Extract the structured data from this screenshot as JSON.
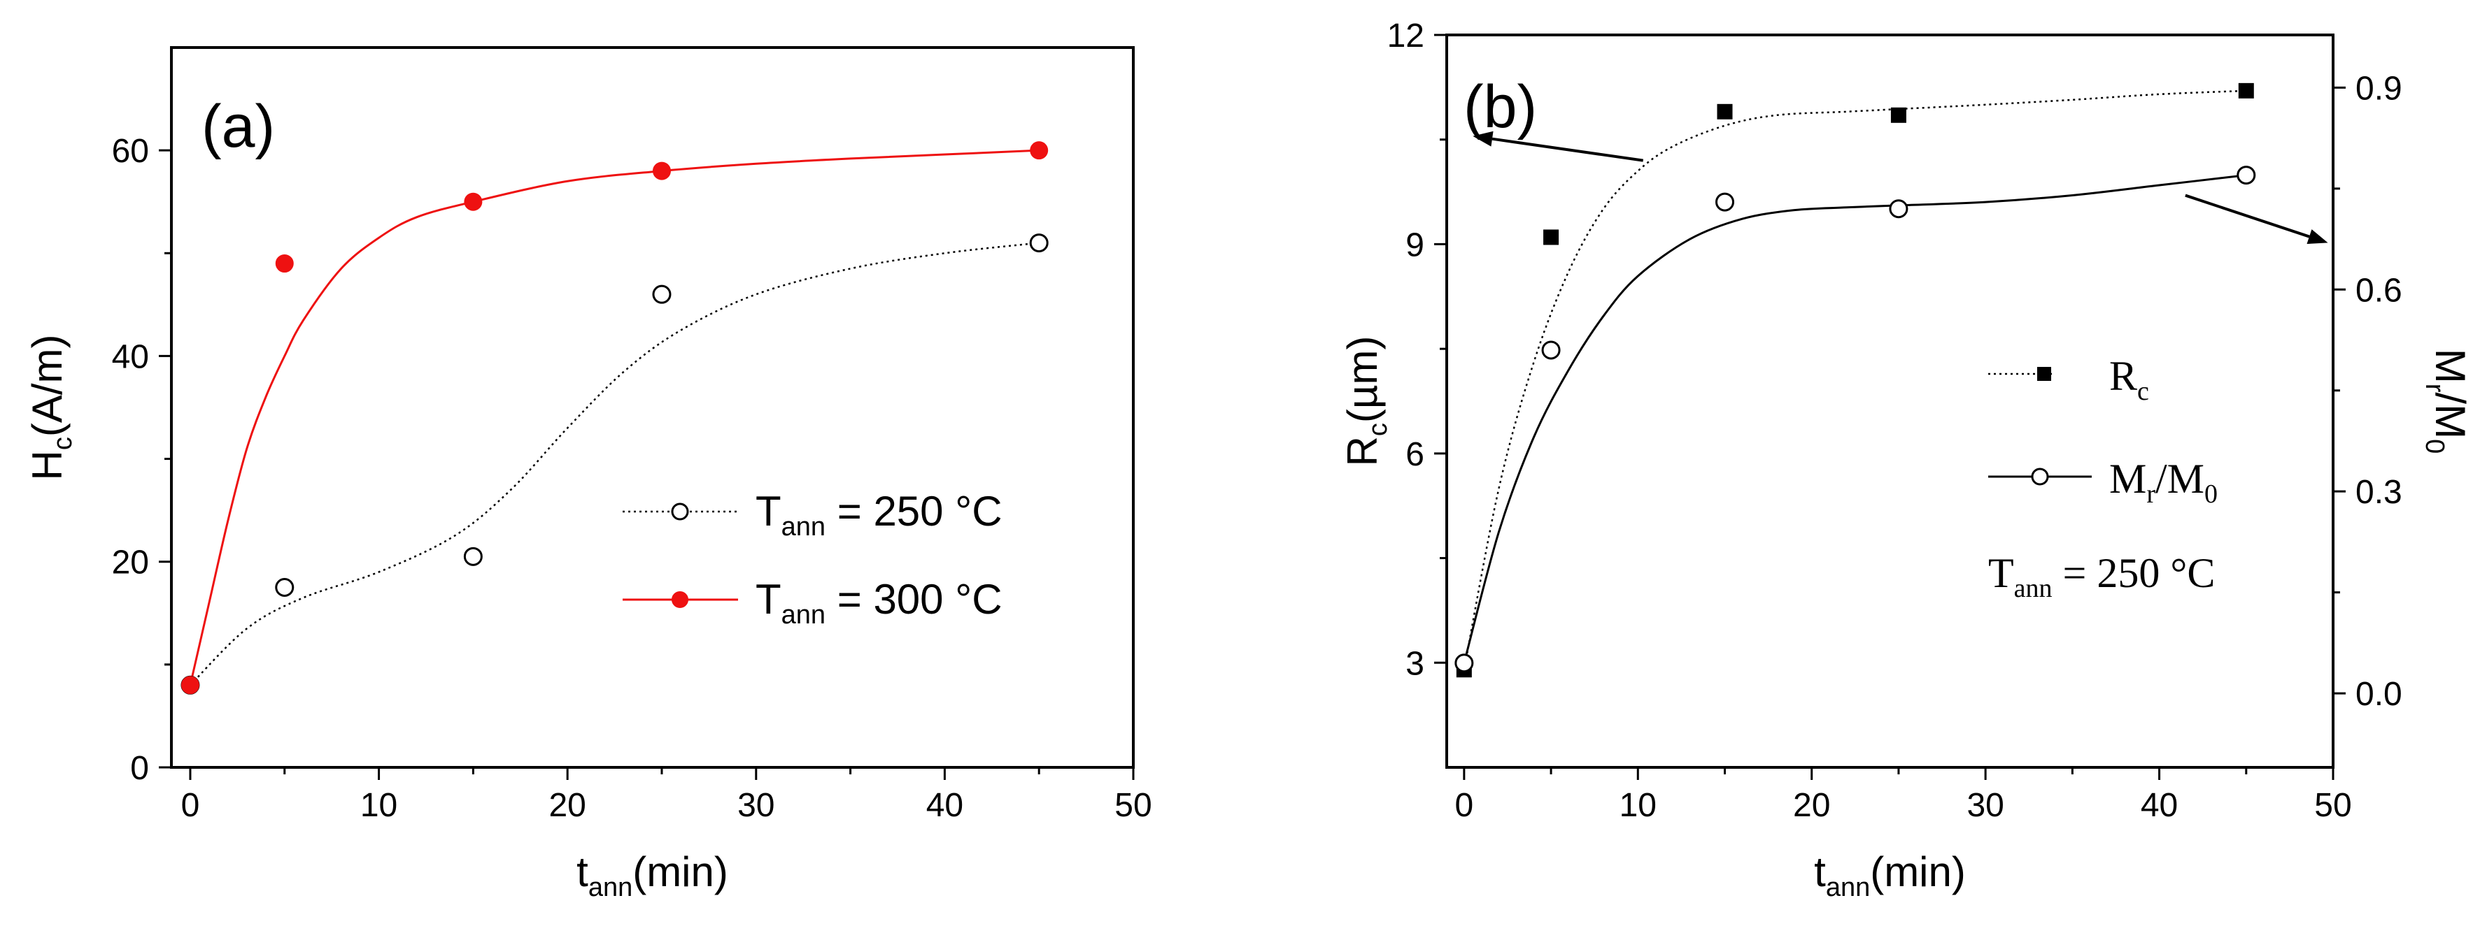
{
  "charts": [
    {
      "id": "a",
      "type": "scatter",
      "panel_label": "(a)",
      "xlabel": {
        "main": "t",
        "sub": "ann",
        "suffix": "(min)"
      },
      "ylabel": {
        "main": "H",
        "sub": "c",
        "suffix": "(A/m)"
      },
      "xlim": [
        -1,
        50
      ],
      "ylim": [
        0,
        70
      ],
      "xticks": [
        0,
        10,
        20,
        30,
        40,
        50
      ],
      "yticks": [
        0,
        20,
        40,
        60
      ],
      "legend": {
        "position": "middle-right"
      },
      "series": [
        {
          "name": "T_ann = 250 °C",
          "label_main": "T",
          "label_sub": "ann",
          "label_rest": " = 250 °C",
          "marker": "open-circle",
          "line": "dotted",
          "color": "#000000",
          "x": [
            0,
            5,
            15,
            25,
            45
          ],
          "y": [
            8,
            17.5,
            20.5,
            46,
            51
          ],
          "fit_x": [
            0,
            3,
            6,
            10,
            14,
            17,
            20,
            23,
            26,
            30,
            35,
            40,
            45
          ],
          "fit_y": [
            8,
            13.5,
            16.5,
            19,
            22.5,
            27,
            33,
            38.5,
            42.5,
            46,
            48.5,
            50,
            51
          ]
        },
        {
          "name": "T_ann = 300 °C",
          "label_main": "T",
          "label_sub": "ann",
          "label_rest": " = 300 °C",
          "marker": "filled-circle",
          "line": "solid",
          "color": "#ee1111",
          "x": [
            0,
            5,
            15,
            25,
            45
          ],
          "y": [
            8,
            49,
            55,
            58,
            60
          ],
          "fit_x": [
            0,
            1,
            2,
            3,
            4,
            5,
            6,
            8,
            10,
            12,
            15,
            20,
            25,
            30,
            35,
            40,
            45
          ],
          "fit_y": [
            8,
            16,
            24,
            31,
            36,
            40,
            43.5,
            48.5,
            51.5,
            53.5,
            55,
            57,
            58,
            58.7,
            59.2,
            59.6,
            60
          ]
        }
      ]
    },
    {
      "id": "b",
      "type": "scatter",
      "panel_label": "(b)",
      "xlabel": {
        "main": "t",
        "sub": "ann",
        "suffix": "(min)"
      },
      "ylabel": {
        "main": "R",
        "sub": "c",
        "suffix": "(µm)"
      },
      "ylabel_right": {
        "main": "M",
        "sub1": "r",
        "mid": "/M",
        "sub2": "0"
      },
      "xlim": [
        -1,
        50
      ],
      "ylim": [
        1.5,
        12
      ],
      "ylim_right": [
        -0.11,
        0.9783
      ],
      "xticks": [
        0,
        10,
        20,
        30,
        40,
        50
      ],
      "yticks": [
        3,
        6,
        9,
        12
      ],
      "yticks_right": [
        0.0,
        0.3,
        0.6,
        0.9
      ],
      "yticks_right_labels": [
        "0.0",
        "0.3",
        "0.6",
        "0.9"
      ],
      "legend": {
        "position": "middle-right"
      },
      "condition": {
        "main": "T",
        "sub": "ann",
        "rest": " = 250 °C"
      },
      "series": [
        {
          "name": "R_c",
          "label_main": "R",
          "label_sub": "c",
          "marker": "filled-square",
          "line": "dotted",
          "axis": "left",
          "color": "#000000",
          "x": [
            0,
            5,
            15,
            25,
            45
          ],
          "y": [
            2.9,
            9.1,
            10.9,
            10.85,
            11.2
          ],
          "fit_x": [
            0,
            2,
            4,
            6,
            8,
            10,
            12,
            15,
            18,
            22,
            26,
            30,
            35,
            40,
            45
          ],
          "fit_y": [
            2.9,
            5.5,
            7.3,
            8.6,
            9.5,
            10.05,
            10.4,
            10.7,
            10.85,
            10.9,
            10.95,
            11.0,
            11.07,
            11.15,
            11.2
          ]
        },
        {
          "name": "M_r/M_0",
          "label_main": "M",
          "label_sub": "r",
          "label_mid": "/M",
          "label_sub2": "0",
          "marker": "open-circle",
          "line": "solid",
          "axis": "right",
          "color": "#000000",
          "x": [
            0,
            5,
            15,
            25,
            45
          ],
          "y": [
            0.045,
            0.51,
            0.73,
            0.72,
            0.77
          ],
          "fit_x": [
            0,
            2,
            4,
            6,
            8,
            10,
            13,
            16,
            19,
            22,
            25,
            30,
            35,
            40,
            45
          ],
          "fit_y": [
            0.045,
            0.24,
            0.38,
            0.48,
            0.56,
            0.62,
            0.675,
            0.705,
            0.718,
            0.722,
            0.725,
            0.73,
            0.74,
            0.755,
            0.77
          ]
        }
      ],
      "arrows": [
        {
          "target": "left-axis",
          "from_x": 10.3,
          "from_y": 10.2,
          "to_x": 0.5,
          "to_y": 10.55
        },
        {
          "target": "right-axis",
          "from_x": 41.5,
          "from_y": 9.7,
          "to_x": 49.7,
          "to_y": 9.02
        }
      ]
    }
  ]
}
